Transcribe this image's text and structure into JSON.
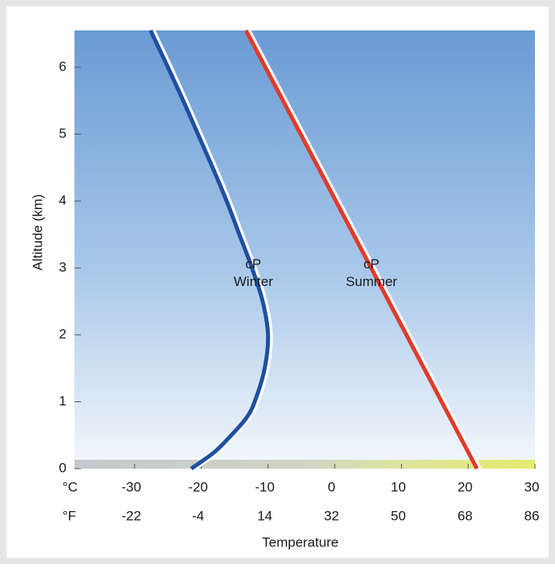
{
  "chart_data": {
    "type": "line",
    "xlabel": "Temperature",
    "ylabel": "Altitude (km)",
    "x_unit": "°C",
    "x2_unit": "°F",
    "xlim": [
      -39,
      30
    ],
    "xticks": [
      -30,
      -20,
      -10,
      0,
      10,
      20,
      30
    ],
    "x2lim": [
      -38.2,
      86
    ],
    "x2ticks": [
      -22,
      -4,
      14,
      32,
      50,
      68,
      86
    ],
    "ylim": [
      0,
      6.55
    ],
    "yticks": [
      0,
      1,
      2,
      3,
      4,
      5,
      6
    ],
    "series": [
      {
        "name": "cP Winter",
        "label_lines": [
          "cP",
          "Winter"
        ],
        "color": "#1f4fa0",
        "x": [
          -21.5,
          -18,
          -15.5,
          -13.3,
          -12,
          -10.5,
          -10,
          -10.8,
          -12.4,
          -14.3,
          -16.2,
          -18.3,
          -20.5,
          -22.7,
          -25,
          -27.6
        ],
        "values": [
          0,
          0.25,
          0.5,
          0.75,
          1,
          1.5,
          2,
          2.5,
          3,
          3.5,
          4,
          4.5,
          5,
          5.5,
          6,
          6.55
        ]
      },
      {
        "name": "cP Summer",
        "label_lines": [
          "cP",
          "Summer"
        ],
        "color": "#e23a2a",
        "x": [
          21.3,
          -13.3
        ],
        "values": [
          0,
          6.55
        ]
      }
    ]
  }
}
